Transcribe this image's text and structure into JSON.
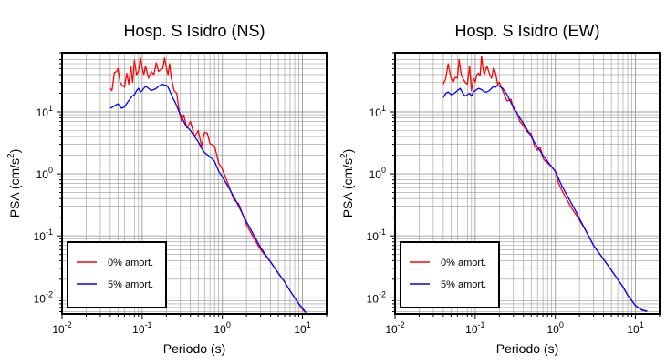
{
  "chart_data": [
    {
      "type": "line",
      "title": "Hosp. S Isidro (NS)",
      "xlabel": "Periodo (s)",
      "ylabel_main": "PSA (cm/s",
      "ylabel_sup": "2",
      "ylabel_tail": ")",
      "xscale": "log",
      "yscale": "log",
      "xlim": [
        0.01,
        20
      ],
      "ylim": [
        0.0055,
        90
      ],
      "grid": true,
      "legend_position": "bottom-left",
      "x_ticks": [
        {
          "base": "10",
          "exp": "-2",
          "value": 0.01
        },
        {
          "base": "10",
          "exp": "-1",
          "value": 0.1
        },
        {
          "base": "10",
          "exp": "0",
          "value": 1
        },
        {
          "base": "10",
          "exp": "1",
          "value": 10
        }
      ],
      "y_ticks": [
        {
          "base": "10",
          "exp": "-2",
          "value": 0.01
        },
        {
          "base": "10",
          "exp": "-1",
          "value": 0.1
        },
        {
          "base": "10",
          "exp": "0",
          "value": 1
        },
        {
          "base": "10",
          "exp": "1",
          "value": 10
        }
      ],
      "series": [
        {
          "name": "0% amort.",
          "color": "#ff0000",
          "points": [
            [
              0.04,
              24
            ],
            [
              0.042,
              22
            ],
            [
              0.045,
              43
            ],
            [
              0.048,
              45
            ],
            [
              0.05,
              50
            ],
            [
              0.053,
              30
            ],
            [
              0.056,
              27
            ],
            [
              0.06,
              25
            ],
            [
              0.064,
              42
            ],
            [
              0.068,
              28
            ],
            [
              0.072,
              55
            ],
            [
              0.076,
              30
            ],
            [
              0.08,
              68
            ],
            [
              0.085,
              40
            ],
            [
              0.09,
              45
            ],
            [
              0.095,
              75
            ],
            [
              0.1,
              52
            ],
            [
              0.105,
              40
            ],
            [
              0.11,
              55
            ],
            [
              0.12,
              35
            ],
            [
              0.13,
              45
            ],
            [
              0.14,
              40
            ],
            [
              0.15,
              62
            ],
            [
              0.16,
              45
            ],
            [
              0.17,
              48
            ],
            [
              0.18,
              50
            ],
            [
              0.19,
              74
            ],
            [
              0.2,
              52
            ],
            [
              0.21,
              40
            ],
            [
              0.22,
              60
            ],
            [
              0.23,
              36
            ],
            [
              0.25,
              22
            ],
            [
              0.27,
              20
            ],
            [
              0.29,
              10
            ],
            [
              0.31,
              7
            ],
            [
              0.33,
              9
            ],
            [
              0.36,
              5.5
            ],
            [
              0.4,
              7
            ],
            [
              0.45,
              4
            ],
            [
              0.5,
              5
            ],
            [
              0.55,
              2.8
            ],
            [
              0.6,
              4.7
            ],
            [
              0.65,
              4.5
            ],
            [
              0.7,
              3.1
            ],
            [
              0.8,
              2.8
            ],
            [
              0.9,
              1.5
            ],
            [
              1,
              1.2
            ],
            [
              1.2,
              0.65
            ],
            [
              1.4,
              0.38
            ],
            [
              1.6,
              0.33
            ],
            [
              1.8,
              0.22
            ],
            [
              2,
              0.15
            ],
            [
              2.5,
              0.09
            ],
            [
              3,
              0.06
            ],
            [
              4,
              0.038
            ],
            [
              5,
              0.025
            ],
            [
              6,
              0.018
            ],
            [
              7,
              0.013
            ],
            [
              8,
              0.01
            ],
            [
              9,
              0.008
            ],
            [
              10,
              0.0065
            ],
            [
              11,
              0.0057
            ]
          ]
        },
        {
          "name": "5% amort.",
          "color": "#0000ff",
          "points": [
            [
              0.04,
              11.5
            ],
            [
              0.043,
              12
            ],
            [
              0.046,
              12.8
            ],
            [
              0.05,
              13.5
            ],
            [
              0.055,
              11.5
            ],
            [
              0.06,
              12
            ],
            [
              0.065,
              14
            ],
            [
              0.07,
              16
            ],
            [
              0.075,
              18
            ],
            [
              0.08,
              19
            ],
            [
              0.085,
              22
            ],
            [
              0.09,
              24
            ],
            [
              0.095,
              21
            ],
            [
              0.1,
              22
            ],
            [
              0.11,
              26
            ],
            [
              0.12,
              24
            ],
            [
              0.13,
              22
            ],
            [
              0.14,
              23
            ],
            [
              0.15,
              24
            ],
            [
              0.16,
              26
            ],
            [
              0.17,
              27
            ],
            [
              0.18,
              28
            ],
            [
              0.19,
              27
            ],
            [
              0.2,
              27
            ],
            [
              0.21,
              25
            ],
            [
              0.22,
              22
            ],
            [
              0.24,
              17
            ],
            [
              0.26,
              14
            ],
            [
              0.28,
              11
            ],
            [
              0.3,
              9
            ],
            [
              0.35,
              6
            ],
            [
              0.4,
              5
            ],
            [
              0.45,
              4
            ],
            [
              0.5,
              3.3
            ],
            [
              0.55,
              2.6
            ],
            [
              0.6,
              2.2
            ],
            [
              0.7,
              1.9
            ],
            [
              0.8,
              1.6
            ],
            [
              0.9,
              1.1
            ],
            [
              1,
              0.9
            ],
            [
              1.2,
              0.6
            ],
            [
              1.4,
              0.42
            ],
            [
              1.6,
              0.3
            ],
            [
              1.8,
              0.22
            ],
            [
              2,
              0.17
            ],
            [
              2.5,
              0.1
            ],
            [
              3,
              0.065
            ],
            [
              4,
              0.038
            ],
            [
              5,
              0.025
            ],
            [
              6,
              0.018
            ],
            [
              7,
              0.013
            ],
            [
              8,
              0.01
            ],
            [
              9,
              0.008
            ],
            [
              10,
              0.0068
            ],
            [
              11,
              0.0058
            ]
          ]
        }
      ]
    },
    {
      "type": "line",
      "title": "Hosp. S Isidro (EW)",
      "xlabel": "Periodo (s)",
      "ylabel_main": "PSA (cm/s",
      "ylabel_sup": "2",
      "ylabel_tail": ")",
      "xscale": "log",
      "yscale": "log",
      "xlim": [
        0.01,
        20
      ],
      "ylim": [
        0.0055,
        90
      ],
      "grid": true,
      "legend_position": "bottom-left",
      "x_ticks": [
        {
          "base": "10",
          "exp": "-2",
          "value": 0.01
        },
        {
          "base": "10",
          "exp": "-1",
          "value": 0.1
        },
        {
          "base": "10",
          "exp": "0",
          "value": 1
        },
        {
          "base": "10",
          "exp": "1",
          "value": 10
        }
      ],
      "y_ticks": [
        {
          "base": "10",
          "exp": "-2",
          "value": 0.01
        },
        {
          "base": "10",
          "exp": "-1",
          "value": 0.1
        },
        {
          "base": "10",
          "exp": "0",
          "value": 1
        },
        {
          "base": "10",
          "exp": "1",
          "value": 10
        }
      ],
      "series": [
        {
          "name": "0% amort.",
          "color": "#ff0000",
          "points": [
            [
              0.04,
              28
            ],
            [
              0.043,
              35
            ],
            [
              0.046,
              60
            ],
            [
              0.05,
              35
            ],
            [
              0.053,
              30
            ],
            [
              0.056,
              36
            ],
            [
              0.06,
              35
            ],
            [
              0.063,
              70
            ],
            [
              0.067,
              40
            ],
            [
              0.07,
              35
            ],
            [
              0.075,
              30
            ],
            [
              0.08,
              28
            ],
            [
              0.085,
              55
            ],
            [
              0.09,
              22
            ],
            [
              0.095,
              35
            ],
            [
              0.1,
              30
            ],
            [
              0.105,
              40
            ],
            [
              0.11,
              42
            ],
            [
              0.115,
              38
            ],
            [
              0.12,
              80
            ],
            [
              0.125,
              50
            ],
            [
              0.13,
              40
            ],
            [
              0.14,
              55
            ],
            [
              0.15,
              42
            ],
            [
              0.16,
              35
            ],
            [
              0.17,
              52
            ],
            [
              0.18,
              42
            ],
            [
              0.19,
              28
            ],
            [
              0.2,
              30
            ],
            [
              0.22,
              22
            ],
            [
              0.25,
              15
            ],
            [
              0.28,
              16
            ],
            [
              0.3,
              11
            ],
            [
              0.33,
              10
            ],
            [
              0.36,
              7
            ],
            [
              0.4,
              6
            ],
            [
              0.45,
              4.7
            ],
            [
              0.5,
              4.5
            ],
            [
              0.55,
              2.8
            ],
            [
              0.6,
              2.4
            ],
            [
              0.65,
              2.7
            ],
            [
              0.7,
              1.8
            ],
            [
              0.75,
              1.6
            ],
            [
              0.8,
              1.5
            ],
            [
              0.9,
              1.3
            ],
            [
              1,
              1.1
            ],
            [
              1.1,
              0.7
            ],
            [
              1.2,
              0.55
            ],
            [
              1.4,
              0.38
            ],
            [
              1.6,
              0.28
            ],
            [
              2,
              0.18
            ],
            [
              2.5,
              0.11
            ],
            [
              3,
              0.07
            ],
            [
              4,
              0.042
            ],
            [
              5,
              0.028
            ],
            [
              6,
              0.02
            ],
            [
              7,
              0.015
            ],
            [
              8,
              0.011
            ],
            [
              9,
              0.009
            ],
            [
              10,
              0.0075
            ],
            [
              12,
              0.0063
            ],
            [
              14,
              0.006
            ]
          ]
        },
        {
          "name": "5% amort.",
          "color": "#0000ff",
          "points": [
            [
              0.04,
              17
            ],
            [
              0.043,
              20
            ],
            [
              0.046,
              21
            ],
            [
              0.05,
              19
            ],
            [
              0.055,
              20
            ],
            [
              0.06,
              22
            ],
            [
              0.065,
              24
            ],
            [
              0.07,
              20
            ],
            [
              0.075,
              18
            ],
            [
              0.08,
              19
            ],
            [
              0.085,
              20
            ],
            [
              0.09,
              18
            ],
            [
              0.095,
              21
            ],
            [
              0.1,
              22
            ],
            [
              0.11,
              24
            ],
            [
              0.12,
              23
            ],
            [
              0.13,
              21
            ],
            [
              0.14,
              21
            ],
            [
              0.15,
              22
            ],
            [
              0.16,
              24
            ],
            [
              0.17,
              26
            ],
            [
              0.18,
              25
            ],
            [
              0.19,
              27
            ],
            [
              0.2,
              26
            ],
            [
              0.22,
              24
            ],
            [
              0.25,
              19
            ],
            [
              0.28,
              14
            ],
            [
              0.3,
              12
            ],
            [
              0.35,
              8.5
            ],
            [
              0.4,
              6.5
            ],
            [
              0.45,
              5
            ],
            [
              0.5,
              4
            ],
            [
              0.55,
              3.2
            ],
            [
              0.6,
              2.7
            ],
            [
              0.7,
              2
            ],
            [
              0.8,
              1.6
            ],
            [
              0.9,
              1.3
            ],
            [
              1,
              1.1
            ],
            [
              1.2,
              0.65
            ],
            [
              1.4,
              0.45
            ],
            [
              1.6,
              0.33
            ],
            [
              1.8,
              0.25
            ],
            [
              2,
              0.19
            ],
            [
              2.5,
              0.11
            ],
            [
              3,
              0.07
            ],
            [
              4,
              0.042
            ],
            [
              5,
              0.028
            ],
            [
              6,
              0.02
            ],
            [
              7,
              0.015
            ],
            [
              8,
              0.011
            ],
            [
              9,
              0.009
            ],
            [
              10,
              0.0075
            ],
            [
              12,
              0.0064
            ],
            [
              14,
              0.0061
            ]
          ]
        }
      ]
    }
  ]
}
